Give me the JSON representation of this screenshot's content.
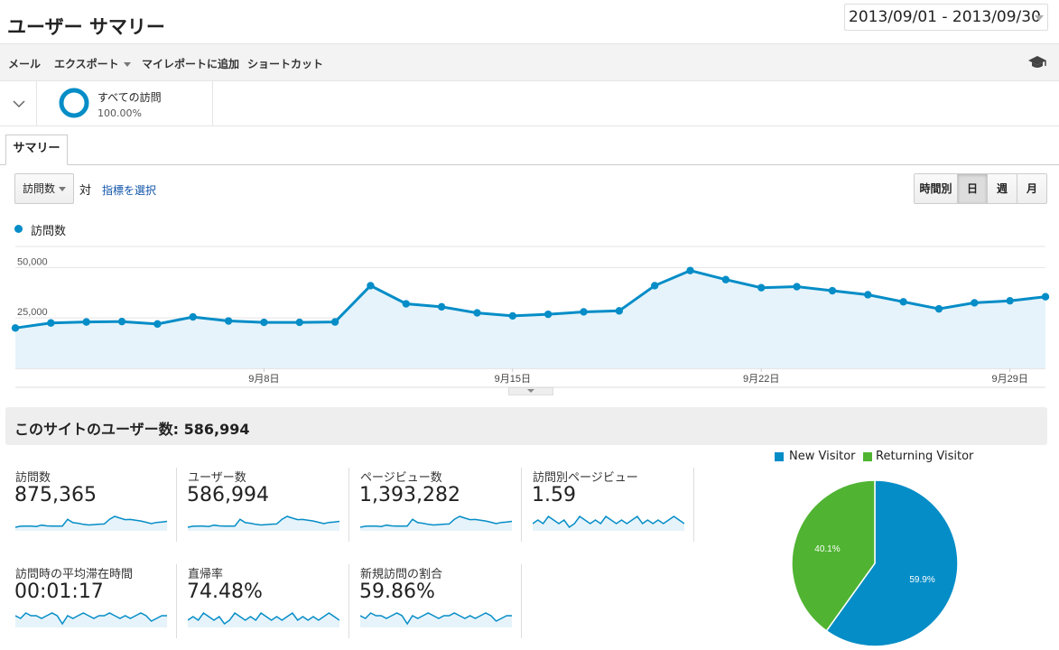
{
  "header": {
    "title": "ユーザー サマリー",
    "date_range": "2013/09/01 - 2013/09/30"
  },
  "toolbar": {
    "email": "メール",
    "export": "エクスポート",
    "add_to_dashboard": "マイレポートに追加",
    "shortcut": "ショートカット",
    "education_icon": "graduation-cap-icon"
  },
  "segment": {
    "name": "すべての訪問",
    "percent": "100.00%"
  },
  "tabs": [
    {
      "label": "サマリー"
    }
  ],
  "chart_controls": {
    "metric": "訪問数",
    "vs": "対",
    "select_metric": "指標を選択",
    "periods": [
      "時間別",
      "日",
      "週",
      "月"
    ],
    "active_period": "日"
  },
  "chart_data": {
    "type": "area",
    "series": [
      {
        "name": "訪問数",
        "values": [
          20000,
          22500,
          23000,
          23200,
          22000,
          25500,
          23500,
          22800,
          22800,
          23000,
          41000,
          32000,
          30500,
          27500,
          26000,
          26800,
          28000,
          28500,
          41000,
          48500,
          44000,
          40000,
          40500,
          38500,
          36500,
          33000,
          29500,
          32500,
          33500,
          35500
        ]
      }
    ],
    "x": [
      "9/1",
      "9/2",
      "9/3",
      "9/4",
      "9/5",
      "9/6",
      "9/7",
      "9/8",
      "9/9",
      "9/10",
      "9/11",
      "9/12",
      "9/13",
      "9/14",
      "9/15",
      "9/16",
      "9/17",
      "9/18",
      "9/19",
      "9/20",
      "9/21",
      "9/22",
      "9/23",
      "9/24",
      "9/25",
      "9/26",
      "9/27",
      "9/28",
      "9/29",
      "9/30"
    ],
    "x_tick_labels": [
      "9月8日",
      "9月15日",
      "9月22日",
      "9月29日"
    ],
    "y_tick_labels": [
      "50,000",
      "25,000"
    ],
    "ylim": [
      0,
      60000
    ],
    "color": "#058dc7",
    "fill": "#e6f3fa"
  },
  "summary": {
    "title": "このサイトのユーザー数: 586,994",
    "metrics": [
      {
        "label": "訪問数",
        "value": "875,365"
      },
      {
        "label": "ユーザー数",
        "value": "586,994"
      },
      {
        "label": "ページビュー数",
        "value": "1,393,282"
      },
      {
        "label": "訪問別ページビュー",
        "value": "1.59"
      },
      {
        "label": "訪問時の平均滞在時間",
        "value": "00:01:17"
      },
      {
        "label": "直帰率",
        "value": "74.48%"
      },
      {
        "label": "新規訪問の割合",
        "value": "59.86%"
      }
    ]
  },
  "pie": {
    "legend": [
      {
        "name": "New Visitor",
        "color": "#058dc7"
      },
      {
        "name": "Returning Visitor",
        "color": "#50b432"
      }
    ],
    "slices": [
      {
        "name": "New Visitor",
        "value": 59.9,
        "label": "59.9%",
        "color": "#058dc7"
      },
      {
        "name": "Returning Visitor",
        "value": 40.1,
        "label": "40.1%",
        "color": "#50b432"
      }
    ]
  }
}
